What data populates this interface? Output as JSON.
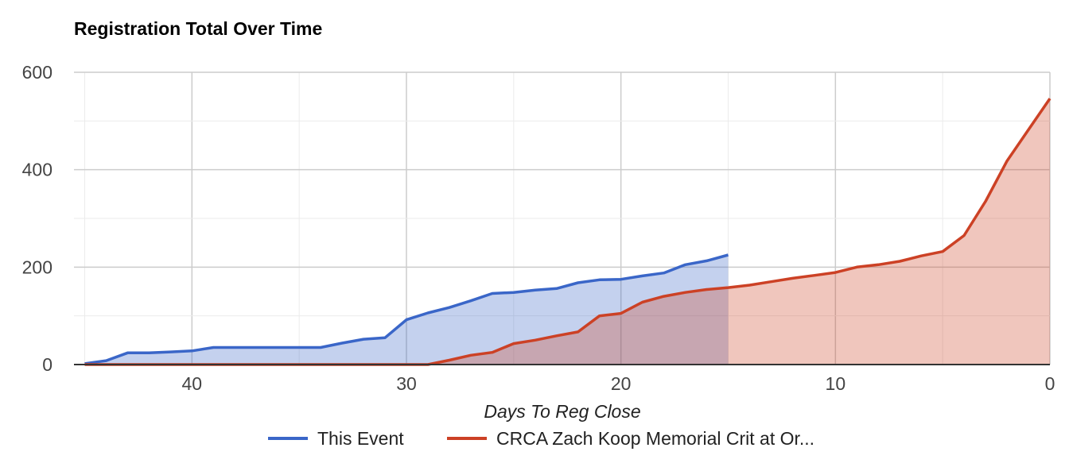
{
  "chart_data": {
    "type": "area",
    "title": "Registration Total Over Time",
    "xlabel": "Days To Reg Close",
    "ylabel": "",
    "xlim": [
      45.5,
      0
    ],
    "ylim": [
      0,
      600
    ],
    "x_ticks": [
      40,
      30,
      20,
      10,
      0
    ],
    "y_ticks": [
      0,
      200,
      400,
      600
    ],
    "grid": true,
    "legend_position": "bottom",
    "series": [
      {
        "name": "This Event",
        "color": "#3a66c8",
        "fill": "#c3cfee",
        "x": [
          45,
          44,
          43,
          42,
          41,
          40,
          39,
          38,
          37,
          36,
          35,
          34,
          33,
          32,
          31,
          30,
          29,
          28,
          27,
          26,
          25,
          24,
          23,
          22,
          21,
          20,
          19,
          18,
          17,
          16,
          15
        ],
        "y": [
          2,
          8,
          24,
          24,
          26,
          28,
          35,
          35,
          35,
          35,
          35,
          35,
          44,
          52,
          55,
          92,
          106,
          117,
          131,
          146,
          148,
          153,
          156,
          168,
          174,
          175,
          182,
          188,
          205,
          213,
          225
        ]
      },
      {
        "name": "CRCA Zach Koop Memorial Crit at Or...",
        "color": "#cc4125",
        "fill": "#f0c5bd",
        "x": [
          45,
          29,
          28,
          27,
          26,
          25,
          24,
          23,
          22,
          21,
          20,
          19,
          18,
          17,
          16,
          15,
          14,
          13,
          12,
          11,
          10,
          9,
          8,
          7,
          6,
          5,
          4,
          3,
          2,
          1,
          0
        ],
        "y": [
          0,
          0,
          9,
          19,
          25,
          43,
          50,
          59,
          67,
          100,
          105,
          128,
          140,
          148,
          154,
          158,
          163,
          170,
          177,
          183,
          189,
          200,
          205,
          212,
          223,
          232,
          265,
          335,
          418,
          482,
          546
        ]
      }
    ]
  }
}
